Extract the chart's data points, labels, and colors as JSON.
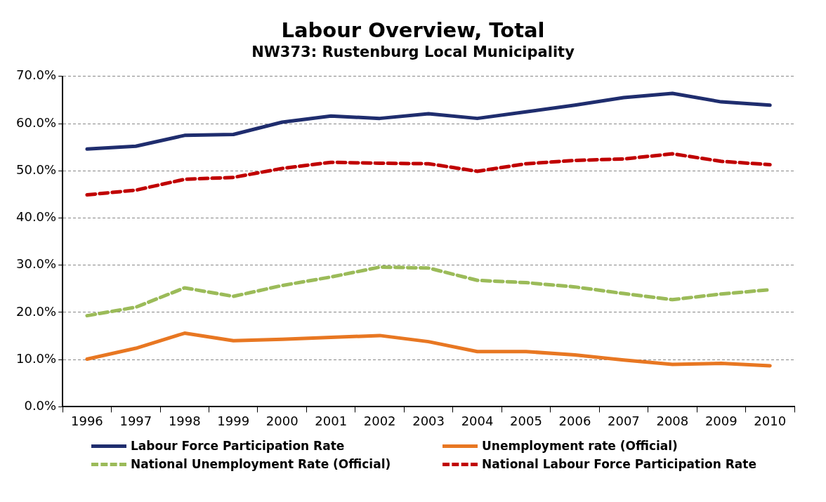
{
  "chart_data": {
    "type": "line",
    "title": "Labour Overview, Total",
    "subtitle": "NW373: Rustenburg Local Municipality",
    "categories": [
      "1996",
      "1997",
      "1998",
      "1999",
      "2000",
      "2001",
      "2002",
      "2003",
      "2004",
      "2005",
      "2006",
      "2007",
      "2008",
      "2009",
      "2010"
    ],
    "series": [
      {
        "name": "Labour Force Participation Rate",
        "color": "#1f2d6e",
        "line_style": "solid",
        "values": [
          54.6,
          55.2,
          57.5,
          57.7,
          60.3,
          61.6,
          61.1,
          62.1,
          61.1,
          62.5,
          63.9,
          65.5,
          66.4,
          64.6,
          63.9
        ]
      },
      {
        "name": "Unemployment rate (Official)",
        "color": "#e87722",
        "line_style": "solid",
        "values": [
          10.1,
          12.4,
          15.6,
          14.0,
          14.3,
          14.7,
          15.1,
          13.8,
          11.7,
          11.7,
          11.0,
          9.9,
          9.0,
          9.2,
          8.7
        ]
      },
      {
        "name": "National Unemployment Rate (Official)",
        "color": "#9bbb59",
        "line_style": "dashed",
        "values": [
          19.3,
          21.1,
          25.2,
          23.4,
          25.7,
          27.5,
          29.6,
          29.4,
          26.8,
          26.3,
          25.4,
          24.0,
          22.7,
          23.9,
          24.8
        ]
      },
      {
        "name": "National Labour Force Participation Rate",
        "color": "#c00000",
        "line_style": "dashed",
        "values": [
          44.9,
          45.9,
          48.2,
          48.6,
          50.5,
          51.8,
          51.6,
          51.5,
          49.9,
          51.5,
          52.2,
          52.5,
          53.6,
          52.0,
          51.3
        ]
      }
    ],
    "ylim": [
      0,
      70
    ],
    "yticks": [
      {
        "value": 0,
        "label": "0.0%"
      },
      {
        "value": 10,
        "label": "10.0%"
      },
      {
        "value": 20,
        "label": "20.0%"
      },
      {
        "value": 30,
        "label": "30.0%"
      },
      {
        "value": 40,
        "label": "40.0%"
      },
      {
        "value": 50,
        "label": "50.0%"
      },
      {
        "value": 60,
        "label": "60.0%"
      },
      {
        "value": 70,
        "label": "70.0%"
      }
    ],
    "grid": "y",
    "legend": "bottom",
    "marker": "none"
  }
}
